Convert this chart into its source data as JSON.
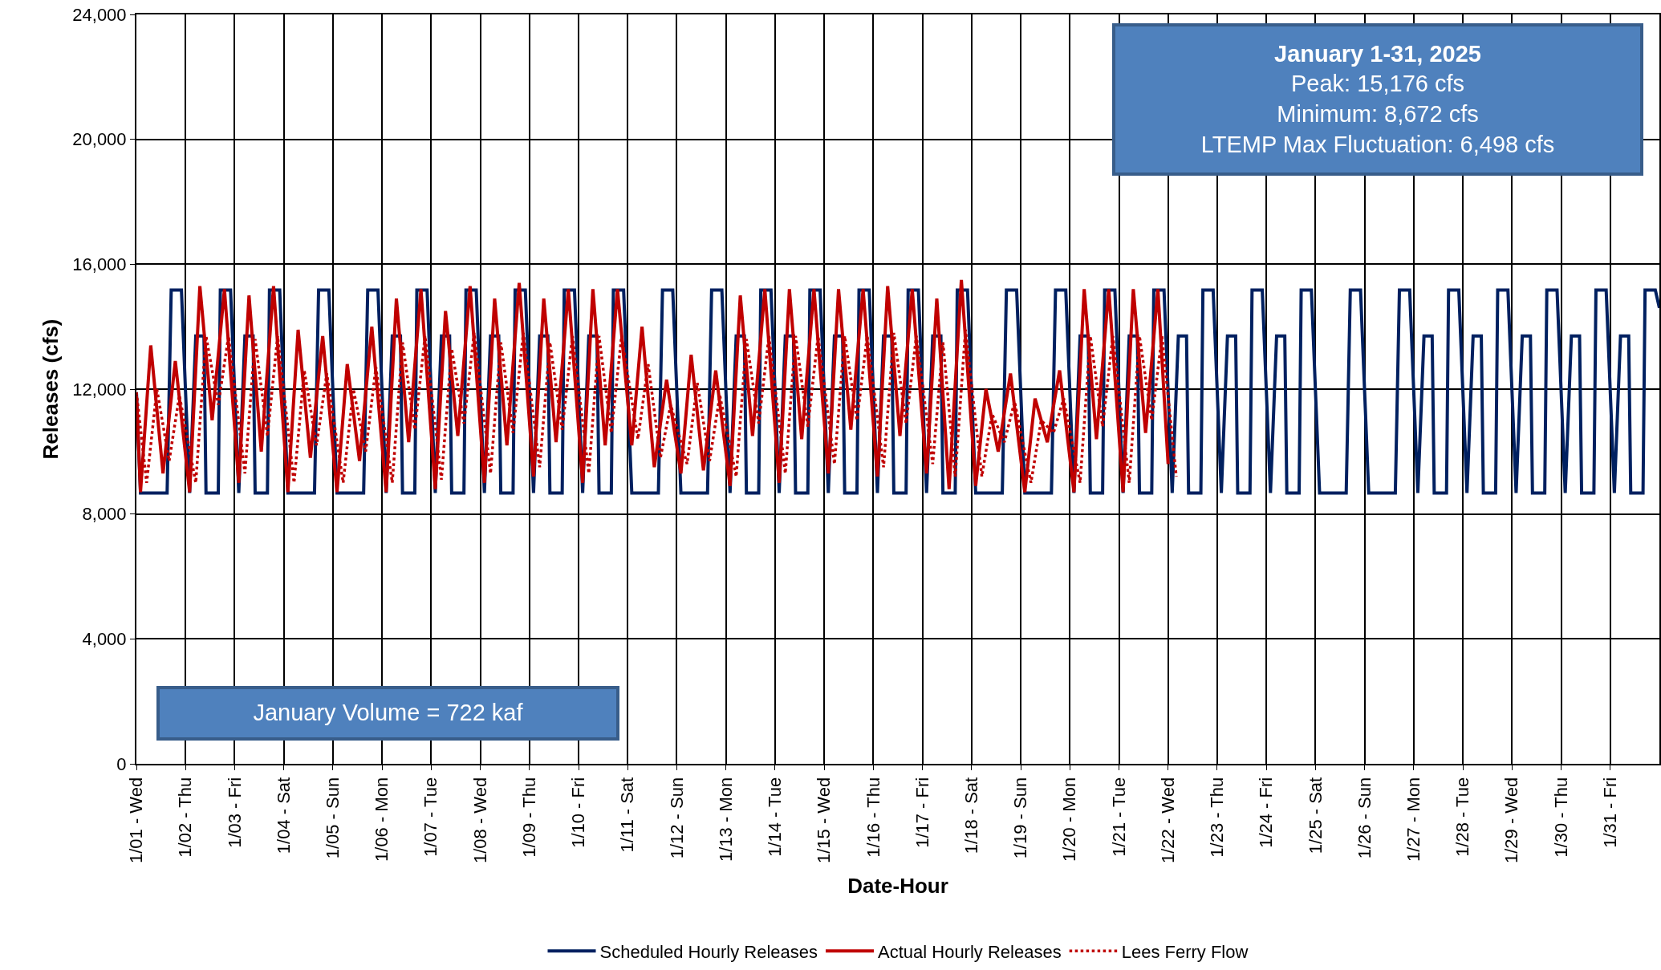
{
  "chart_data": {
    "type": "line",
    "xlabel": "Date-Hour",
    "ylabel": "Releases (cfs)",
    "xlim": [
      "2025-01-01",
      "2025-02-01"
    ],
    "ylim": [
      0,
      24000
    ],
    "xticks": [
      {
        "value": "2025-01-01",
        "label": "1/01 - Wed"
      },
      {
        "value": "2025-01-02",
        "label": "1/02 - Thu"
      },
      {
        "value": "2025-01-03",
        "label": "1/03 - Fri"
      },
      {
        "value": "2025-01-04",
        "label": "1/04 - Sat"
      },
      {
        "value": "2025-01-05",
        "label": "1/05 - Sun"
      },
      {
        "value": "2025-01-06",
        "label": "1/06 - Mon"
      },
      {
        "value": "2025-01-07",
        "label": "1/07 - Tue"
      },
      {
        "value": "2025-01-08",
        "label": "1/08 - Wed"
      },
      {
        "value": "2025-01-09",
        "label": "1/09 - Thu"
      },
      {
        "value": "2025-01-10",
        "label": "1/10 - Fri"
      },
      {
        "value": "2025-01-11",
        "label": "1/11 - Sat"
      },
      {
        "value": "2025-01-12",
        "label": "1/12 - Sun"
      },
      {
        "value": "2025-01-13",
        "label": "1/13 - Mon"
      },
      {
        "value": "2025-01-14",
        "label": "1/14 - Tue"
      },
      {
        "value": "2025-01-15",
        "label": "1/15 - Wed"
      },
      {
        "value": "2025-01-16",
        "label": "1/16 - Thu"
      },
      {
        "value": "2025-01-17",
        "label": "1/17 - Fri"
      },
      {
        "value": "2025-01-18",
        "label": "1/18 - Sat"
      },
      {
        "value": "2025-01-19",
        "label": "1/19 - Sun"
      },
      {
        "value": "2025-01-20",
        "label": "1/20 - Mon"
      },
      {
        "value": "2025-01-21",
        "label": "1/21 - Tue"
      },
      {
        "value": "2025-01-22",
        "label": "1/22 - Wed"
      },
      {
        "value": "2025-01-23",
        "label": "1/23 - Thu"
      },
      {
        "value": "2025-01-24",
        "label": "1/24 - Fri"
      },
      {
        "value": "2025-01-25",
        "label": "1/25 - Sat"
      },
      {
        "value": "2025-01-26",
        "label": "1/26 - Sun"
      },
      {
        "value": "2025-01-27",
        "label": "1/27 - Mon"
      },
      {
        "value": "2025-01-28",
        "label": "1/28 - Tue"
      },
      {
        "value": "2025-01-29",
        "label": "1/29 - Wed"
      },
      {
        "value": "2025-01-30",
        "label": "1/30 - Thu"
      },
      {
        "value": "2025-01-31",
        "label": "1/31 - Fri"
      }
    ],
    "yticks": [
      0,
      {
        "value": 4000,
        "label": "4,000"
      },
      {
        "value": 8000,
        "label": "8,000"
      },
      {
        "value": 12000,
        "label": "12,000"
      },
      {
        "value": 16000,
        "label": "16,000"
      },
      {
        "value": 20000,
        "label": "20,000"
      },
      {
        "value": 24000,
        "label": "24,000"
      }
    ],
    "grid": true,
    "legend": "bottom",
    "marker": "none",
    "annotations": [
      "January 1-31, 2025",
      "Peak: 15,176  cfs",
      "Minimum: 8,672  cfs",
      "LTEMP Max Fluctuation: 6,498  cfs",
      "January Volume = 722 kaf"
    ],
    "series": [
      {
        "name": "Scheduled Hourly Releases",
        "color": "#002060",
        "line_style": "solid",
        "x": [
          "2025-01-01T00:00",
          "2025-01-01T02:00",
          "2025-01-01T15:00",
          "2025-01-01T17:00",
          "2025-01-01T22:00",
          "2025-01-02T02:00",
          "2025-01-02T05:00",
          "2025-01-02T09:00",
          "2025-01-02T10:00",
          "2025-01-02T16:00",
          "2025-01-02T17:00",
          "2025-01-02T22:00",
          "2025-01-03T02:00",
          "2025-01-03T05:00",
          "2025-01-03T09:00",
          "2025-01-03T10:00",
          "2025-01-03T16:00",
          "2025-01-03T17:00",
          "2025-01-03T22:00",
          "2025-01-04T02:00",
          "2025-01-04T15:00",
          "2025-01-04T17:00",
          "2025-01-04T22:00",
          "2025-01-05T02:00",
          "2025-01-05T15:00",
          "2025-01-05T17:00",
          "2025-01-05T22:00",
          "2025-01-06T02:00",
          "2025-01-06T05:00",
          "2025-01-06T09:00",
          "2025-01-06T10:00",
          "2025-01-06T16:00",
          "2025-01-06T17:00",
          "2025-01-06T22:00",
          "2025-01-07T02:00",
          "2025-01-07T05:00",
          "2025-01-07T09:00",
          "2025-01-07T10:00",
          "2025-01-07T16:00",
          "2025-01-07T17:00",
          "2025-01-07T22:00",
          "2025-01-08T02:00",
          "2025-01-08T05:00",
          "2025-01-08T09:00",
          "2025-01-08T10:00",
          "2025-01-08T16:00",
          "2025-01-08T17:00",
          "2025-01-08T22:00",
          "2025-01-09T02:00",
          "2025-01-09T05:00",
          "2025-01-09T09:00",
          "2025-01-09T10:00",
          "2025-01-09T16:00",
          "2025-01-09T17:00",
          "2025-01-09T22:00",
          "2025-01-10T02:00",
          "2025-01-10T05:00",
          "2025-01-10T09:00",
          "2025-01-10T10:00",
          "2025-01-10T16:00",
          "2025-01-10T17:00",
          "2025-01-10T22:00",
          "2025-01-11T02:00",
          "2025-01-11T15:00",
          "2025-01-11T17:00",
          "2025-01-11T22:00",
          "2025-01-12T02:00",
          "2025-01-12T15:00",
          "2025-01-12T17:00",
          "2025-01-12T22:00",
          "2025-01-13T02:00",
          "2025-01-13T05:00",
          "2025-01-13T09:00",
          "2025-01-13T10:00",
          "2025-01-13T16:00",
          "2025-01-13T17:00",
          "2025-01-13T22:00",
          "2025-01-14T02:00",
          "2025-01-14T05:00",
          "2025-01-14T09:00",
          "2025-01-14T10:00",
          "2025-01-14T16:00",
          "2025-01-14T17:00",
          "2025-01-14T22:00",
          "2025-01-15T02:00",
          "2025-01-15T05:00",
          "2025-01-15T09:00",
          "2025-01-15T10:00",
          "2025-01-15T16:00",
          "2025-01-15T17:00",
          "2025-01-15T22:00",
          "2025-01-16T02:00",
          "2025-01-16T05:00",
          "2025-01-16T09:00",
          "2025-01-16T10:00",
          "2025-01-16T16:00",
          "2025-01-16T17:00",
          "2025-01-16T22:00",
          "2025-01-17T02:00",
          "2025-01-17T05:00",
          "2025-01-17T09:00",
          "2025-01-17T10:00",
          "2025-01-17T16:00",
          "2025-01-17T17:00",
          "2025-01-17T22:00",
          "2025-01-18T02:00",
          "2025-01-18T15:00",
          "2025-01-18T17:00",
          "2025-01-18T22:00",
          "2025-01-19T02:00",
          "2025-01-19T15:00",
          "2025-01-19T17:00",
          "2025-01-19T22:00",
          "2025-01-20T02:00",
          "2025-01-20T05:00",
          "2025-01-20T09:00",
          "2025-01-20T10:00",
          "2025-01-20T16:00",
          "2025-01-20T17:00",
          "2025-01-20T22:00",
          "2025-01-21T02:00",
          "2025-01-21T05:00",
          "2025-01-21T09:00",
          "2025-01-21T10:00",
          "2025-01-21T16:00",
          "2025-01-21T17:00",
          "2025-01-21T22:00",
          "2025-01-22T02:00",
          "2025-01-22T05:00",
          "2025-01-22T09:00",
          "2025-01-22T10:00",
          "2025-01-22T16:00",
          "2025-01-22T17:00",
          "2025-01-22T22:00",
          "2025-01-23T02:00",
          "2025-01-23T05:00",
          "2025-01-23T09:00",
          "2025-01-23T10:00",
          "2025-01-23T16:00",
          "2025-01-23T17:00",
          "2025-01-23T22:00",
          "2025-01-24T02:00",
          "2025-01-24T05:00",
          "2025-01-24T09:00",
          "2025-01-24T10:00",
          "2025-01-24T16:00",
          "2025-01-24T17:00",
          "2025-01-24T22:00",
          "2025-01-25T02:00",
          "2025-01-25T15:00",
          "2025-01-25T17:00",
          "2025-01-25T22:00",
          "2025-01-26T02:00",
          "2025-01-26T15:00",
          "2025-01-26T17:00",
          "2025-01-26T22:00",
          "2025-01-27T02:00",
          "2025-01-27T05:00",
          "2025-01-27T09:00",
          "2025-01-27T10:00",
          "2025-01-27T16:00",
          "2025-01-27T17:00",
          "2025-01-27T22:00",
          "2025-01-28T02:00",
          "2025-01-28T05:00",
          "2025-01-28T09:00",
          "2025-01-28T10:00",
          "2025-01-28T16:00",
          "2025-01-28T17:00",
          "2025-01-28T22:00",
          "2025-01-29T02:00",
          "2025-01-29T05:00",
          "2025-01-29T09:00",
          "2025-01-29T10:00",
          "2025-01-29T16:00",
          "2025-01-29T17:00",
          "2025-01-29T22:00",
          "2025-01-30T02:00",
          "2025-01-30T05:00",
          "2025-01-30T09:00",
          "2025-01-30T10:00",
          "2025-01-30T16:00",
          "2025-01-30T17:00",
          "2025-01-30T22:00",
          "2025-01-31T02:00",
          "2025-01-31T05:00",
          "2025-01-31T09:00",
          "2025-01-31T10:00",
          "2025-01-31T16:00",
          "2025-01-31T17:00",
          "2025-01-31T22:00",
          "2025-02-01T00:00"
        ],
        "values": [
          11900,
          8672,
          8672,
          15176,
          15176,
          8672,
          13700,
          13700,
          8672,
          8672,
          15176,
          15176,
          8672,
          13700,
          13700,
          8672,
          8672,
          15176,
          15176,
          8672,
          8672,
          15176,
          15176,
          8672,
          8672,
          15176,
          15176,
          8672,
          13700,
          13700,
          8672,
          8672,
          15176,
          15176,
          8672,
          13700,
          13700,
          8672,
          8672,
          15176,
          15176,
          8672,
          13700,
          13700,
          8672,
          8672,
          15176,
          15176,
          8672,
          13700,
          13700,
          8672,
          8672,
          15176,
          15176,
          8672,
          13700,
          13700,
          8672,
          8672,
          15176,
          15176,
          8672,
          8672,
          15176,
          15176,
          8672,
          8672,
          15176,
          15176,
          8672,
          13700,
          13700,
          8672,
          8672,
          15176,
          15176,
          8672,
          13700,
          13700,
          8672,
          8672,
          15176,
          15176,
          8672,
          13700,
          13700,
          8672,
          8672,
          15176,
          15176,
          8672,
          13700,
          13700,
          8672,
          8672,
          15176,
          15176,
          8672,
          13700,
          13700,
          8672,
          8672,
          15176,
          15176,
          8672,
          8672,
          15176,
          15176,
          8672,
          8672,
          15176,
          15176,
          8672,
          13700,
          13700,
          8672,
          8672,
          15176,
          15176,
          8672,
          13700,
          13700,
          8672,
          8672,
          15176,
          15176,
          8672,
          13700,
          13700,
          8672,
          8672,
          15176,
          15176,
          8672,
          13700,
          13700,
          8672,
          8672,
          15176,
          15176,
          8672,
          13700,
          13700,
          8672,
          8672,
          15176,
          15176,
          8672,
          8672,
          15176,
          15176,
          8672,
          8672,
          15176,
          15176,
          8672,
          13700,
          13700,
          8672,
          8672,
          15176,
          15176,
          8672,
          13700,
          13700,
          8672,
          8672,
          15176,
          15176,
          8672,
          13700,
          13700,
          8672,
          8672,
          15176,
          15176,
          8672,
          13700,
          13700,
          8672,
          8672,
          15176,
          15176,
          8672,
          13700,
          13700,
          8672,
          8672,
          15176,
          15176,
          14600
        ]
      },
      {
        "name": "Actual Hourly Releases",
        "color": "#c00000",
        "line_style": "solid",
        "x": [
          "2025-01-01T00:00",
          "2025-01-01T02:00",
          "2025-01-01T07:00",
          "2025-01-01T13:00",
          "2025-01-01T19:00",
          "2025-01-02T02:00",
          "2025-01-02T07:00",
          "2025-01-02T13:00",
          "2025-01-02T19:00",
          "2025-01-03T02:00",
          "2025-01-03T07:00",
          "2025-01-03T13:00",
          "2025-01-03T19:00",
          "2025-01-04T02:00",
          "2025-01-04T07:00",
          "2025-01-04T13:00",
          "2025-01-04T19:00",
          "2025-01-05T02:00",
          "2025-01-05T07:00",
          "2025-01-05T13:00",
          "2025-01-05T19:00",
          "2025-01-06T02:00",
          "2025-01-06T07:00",
          "2025-01-06T13:00",
          "2025-01-06T19:00",
          "2025-01-07T02:00",
          "2025-01-07T07:00",
          "2025-01-07T13:00",
          "2025-01-07T19:00",
          "2025-01-08T02:00",
          "2025-01-08T07:00",
          "2025-01-08T13:00",
          "2025-01-08T19:00",
          "2025-01-09T02:00",
          "2025-01-09T07:00",
          "2025-01-09T13:00",
          "2025-01-09T19:00",
          "2025-01-10T02:00",
          "2025-01-10T07:00",
          "2025-01-10T13:00",
          "2025-01-10T19:00",
          "2025-01-11T02:00",
          "2025-01-11T07:00",
          "2025-01-11T13:00",
          "2025-01-11T19:00",
          "2025-01-12T02:00",
          "2025-01-12T07:00",
          "2025-01-12T13:00",
          "2025-01-12T19:00",
          "2025-01-13T02:00",
          "2025-01-13T07:00",
          "2025-01-13T13:00",
          "2025-01-13T19:00",
          "2025-01-14T02:00",
          "2025-01-14T07:00",
          "2025-01-14T13:00",
          "2025-01-14T19:00",
          "2025-01-15T02:00",
          "2025-01-15T07:00",
          "2025-01-15T13:00",
          "2025-01-15T19:00",
          "2025-01-16T02:00",
          "2025-01-16T07:00",
          "2025-01-16T13:00",
          "2025-01-16T19:00",
          "2025-01-17T02:00",
          "2025-01-17T07:00",
          "2025-01-17T13:00",
          "2025-01-17T19:00",
          "2025-01-18T02:00",
          "2025-01-18T07:00",
          "2025-01-18T13:00",
          "2025-01-18T19:00",
          "2025-01-19T02:00",
          "2025-01-19T07:00",
          "2025-01-19T13:00",
          "2025-01-19T19:00",
          "2025-01-20T02:00",
          "2025-01-20T07:00",
          "2025-01-20T13:00",
          "2025-01-20T19:00",
          "2025-01-21T02:00",
          "2025-01-21T07:00",
          "2025-01-21T13:00",
          "2025-01-21T19:00",
          "2025-01-22T00:00"
        ],
        "values": [
          11800,
          8700,
          13400,
          9300,
          12900,
          8700,
          15300,
          11000,
          15200,
          9000,
          15000,
          10000,
          15300,
          8700,
          13900,
          9800,
          13700,
          8700,
          12800,
          9700,
          14000,
          8700,
          14900,
          10300,
          15200,
          8800,
          14500,
          10500,
          15300,
          9000,
          14900,
          10200,
          15400,
          9200,
          14900,
          10300,
          15200,
          9000,
          15200,
          10200,
          15200,
          10200,
          14000,
          9500,
          12300,
          9300,
          13100,
          9400,
          12600,
          8900,
          15000,
          10500,
          15200,
          9000,
          15200,
          10400,
          15200,
          9300,
          15200,
          10700,
          15200,
          9200,
          15300,
          10500,
          15200,
          9300,
          14900,
          8800,
          15500,
          8900,
          12000,
          10000,
          12500,
          8700,
          11700,
          10300,
          12600,
          8700,
          15200,
          10400,
          15200,
          8700,
          15200,
          10600,
          15200,
          9600
        ]
      },
      {
        "name": "Lees Ferry Flow",
        "color": "#c00000",
        "line_style": "dotted",
        "x": [
          "2025-01-01T00:00",
          "2025-01-01T05:00",
          "2025-01-01T10:00",
          "2025-01-01T16:00",
          "2025-01-01T21:00",
          "2025-01-02T05:00",
          "2025-01-02T10:00",
          "2025-01-02T16:00",
          "2025-01-02T21:00",
          "2025-01-03T05:00",
          "2025-01-03T10:00",
          "2025-01-03T16:00",
          "2025-01-03T21:00",
          "2025-01-04T05:00",
          "2025-01-04T10:00",
          "2025-01-04T16:00",
          "2025-01-04T21:00",
          "2025-01-05T05:00",
          "2025-01-05T10:00",
          "2025-01-05T16:00",
          "2025-01-05T21:00",
          "2025-01-06T05:00",
          "2025-01-06T10:00",
          "2025-01-06T16:00",
          "2025-01-06T21:00",
          "2025-01-07T05:00",
          "2025-01-07T10:00",
          "2025-01-07T16:00",
          "2025-01-07T21:00",
          "2025-01-08T05:00",
          "2025-01-08T10:00",
          "2025-01-08T16:00",
          "2025-01-08T21:00",
          "2025-01-09T05:00",
          "2025-01-09T10:00",
          "2025-01-09T16:00",
          "2025-01-09T21:00",
          "2025-01-10T05:00",
          "2025-01-10T10:00",
          "2025-01-10T16:00",
          "2025-01-10T21:00",
          "2025-01-11T05:00",
          "2025-01-11T10:00",
          "2025-01-11T16:00",
          "2025-01-11T21:00",
          "2025-01-12T05:00",
          "2025-01-12T10:00",
          "2025-01-12T16:00",
          "2025-01-12T21:00",
          "2025-01-13T05:00",
          "2025-01-13T10:00",
          "2025-01-13T16:00",
          "2025-01-13T21:00",
          "2025-01-14T05:00",
          "2025-01-14T10:00",
          "2025-01-14T16:00",
          "2025-01-14T21:00",
          "2025-01-15T05:00",
          "2025-01-15T10:00",
          "2025-01-15T16:00",
          "2025-01-15T21:00",
          "2025-01-16T05:00",
          "2025-01-16T10:00",
          "2025-01-16T16:00",
          "2025-01-16T21:00",
          "2025-01-17T05:00",
          "2025-01-17T10:00",
          "2025-01-17T16:00",
          "2025-01-17T21:00",
          "2025-01-18T05:00",
          "2025-01-18T10:00",
          "2025-01-18T16:00",
          "2025-01-18T21:00",
          "2025-01-19T05:00",
          "2025-01-19T10:00",
          "2025-01-19T16:00",
          "2025-01-19T21:00",
          "2025-01-20T05:00",
          "2025-01-20T10:00",
          "2025-01-20T16:00",
          "2025-01-20T21:00",
          "2025-01-21T05:00",
          "2025-01-21T10:00",
          "2025-01-21T16:00",
          "2025-01-21T21:00",
          "2025-01-22T04:00"
        ],
        "values": [
          11900,
          9000,
          12000,
          9700,
          11800,
          9000,
          13700,
          11500,
          13700,
          9300,
          13600,
          10500,
          13700,
          9000,
          12600,
          10200,
          12500,
          9000,
          12000,
          10000,
          12700,
          9000,
          13500,
          10700,
          13700,
          9100,
          13300,
          10900,
          13800,
          9300,
          13500,
          10600,
          13800,
          9500,
          13500,
          10700,
          13700,
          9300,
          13700,
          10600,
          13700,
          10400,
          12800,
          9800,
          11500,
          9600,
          12200,
          9700,
          11800,
          9200,
          13600,
          10900,
          13700,
          9300,
          13700,
          10800,
          13700,
          9600,
          13700,
          11000,
          13700,
          9500,
          13800,
          10900,
          13700,
          9600,
          13500,
          9200,
          13900,
          9200,
          11200,
          10300,
          11600,
          9000,
          11000,
          10600,
          11700,
          9000,
          13700,
          10800,
          13700,
          9000,
          13700,
          11000,
          13700,
          9200
        ]
      }
    ]
  }
}
